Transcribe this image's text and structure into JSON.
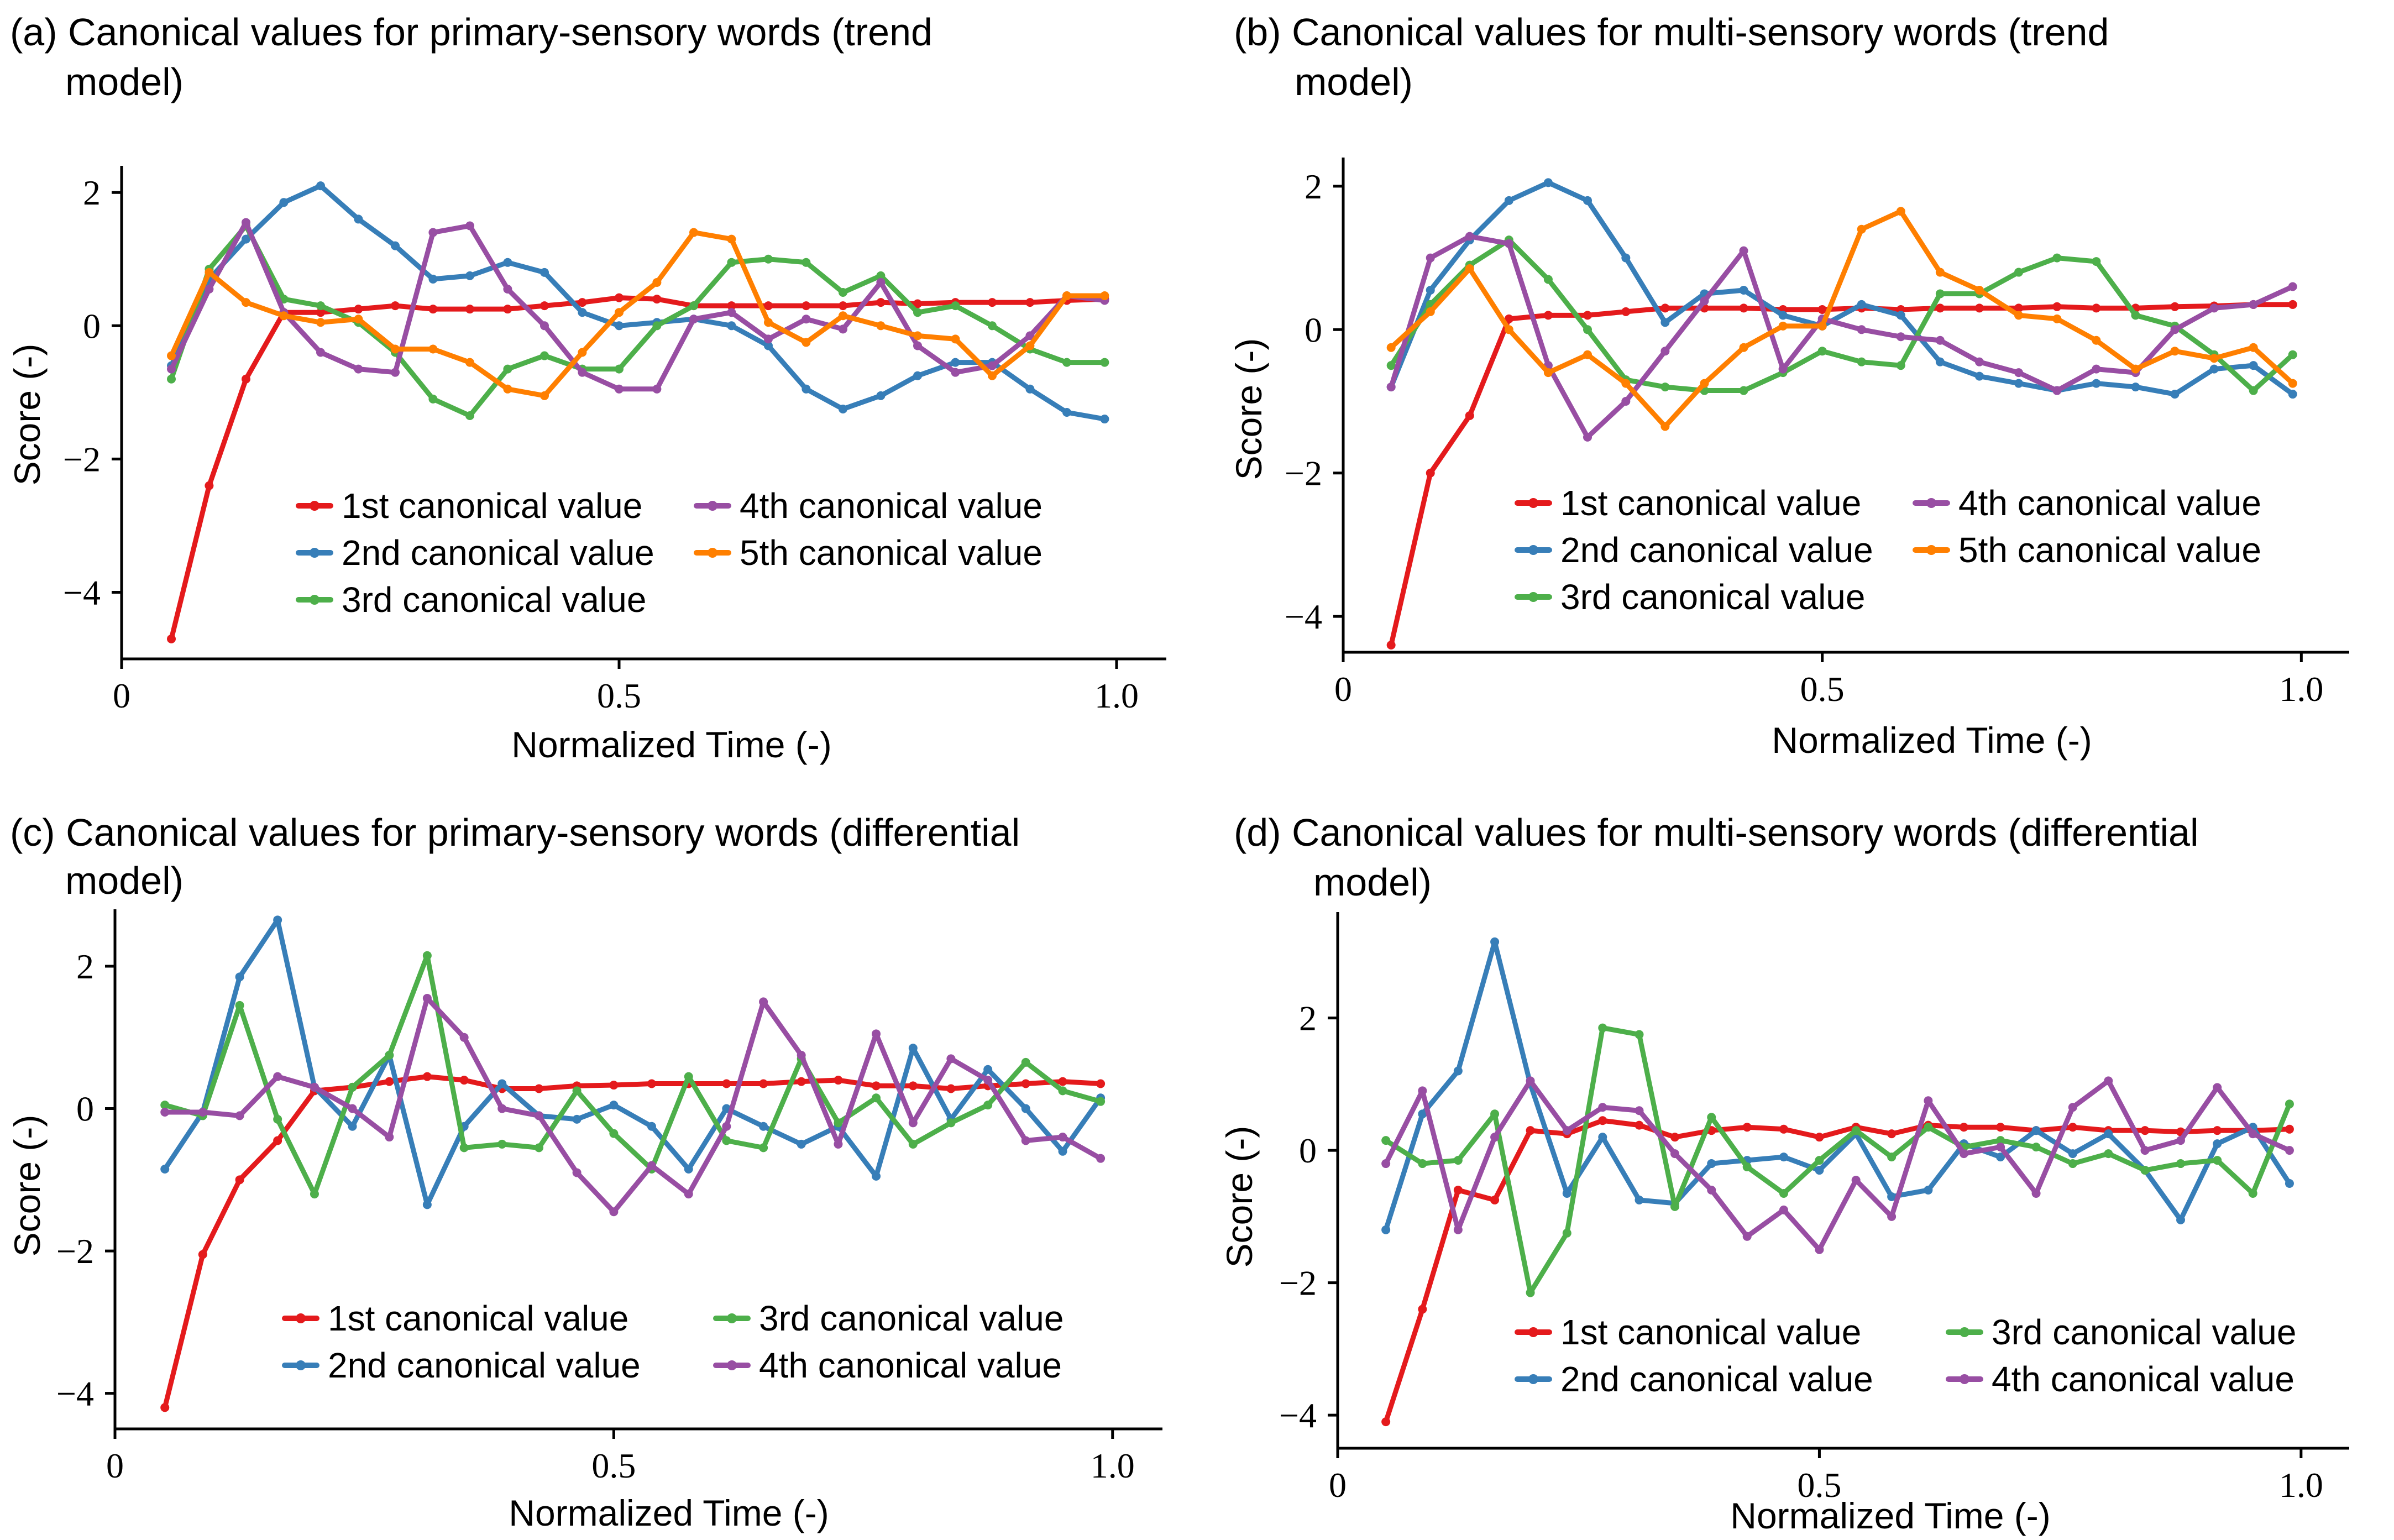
{
  "chart_data": [
    {
      "id": "a",
      "type": "line",
      "title_line1": "(a) Canonical values for primary-sensory words (trend",
      "title_line2": "model)",
      "xlabel": "Normalized Time (-)",
      "ylabel": "Score (-)",
      "xlim": [
        0,
        1.05
      ],
      "ylim": [
        -5,
        2.4
      ],
      "xticks": [
        {
          "v": 0,
          "label": "0"
        },
        {
          "v": 0.5,
          "label": "0.5"
        },
        {
          "v": 1.0,
          "label": "1.0"
        }
      ],
      "yticks": [
        {
          "v": -4,
          "label": "−4"
        },
        {
          "v": -2,
          "label": "−2"
        },
        {
          "v": 0,
          "label": "0"
        },
        {
          "v": 2,
          "label": "2"
        }
      ],
      "legend_columns": 2,
      "x": [
        0.05,
        0.088,
        0.125,
        0.163,
        0.2,
        0.238,
        0.275,
        0.313,
        0.35,
        0.388,
        0.425,
        0.463,
        0.5,
        0.538,
        0.575,
        0.613,
        0.65,
        0.688,
        0.725,
        0.763,
        0.8,
        0.838,
        0.875,
        0.913,
        0.95,
        0.988
      ],
      "series": [
        {
          "name": "1st canonical value",
          "color": "#e41a1c",
          "values": [
            -4.7,
            -2.4,
            -0.8,
            0.2,
            0.2,
            0.25,
            0.3,
            0.25,
            0.25,
            0.25,
            0.3,
            0.35,
            0.42,
            0.4,
            0.3,
            0.3,
            0.3,
            0.3,
            0.3,
            0.35,
            0.33,
            0.35,
            0.35,
            0.35,
            0.38,
            0.4
          ]
        },
        {
          "name": "2nd canonical value",
          "color": "#377eb8",
          "values": [
            -0.6,
            0.7,
            1.3,
            1.85,
            2.1,
            1.6,
            1.2,
            0.7,
            0.75,
            0.95,
            0.8,
            0.2,
            0.0,
            0.05,
            0.1,
            0.0,
            -0.3,
            -0.95,
            -1.25,
            -1.05,
            -0.75,
            -0.55,
            -0.55,
            -0.95,
            -1.3,
            -1.4
          ]
        },
        {
          "name": "3rd canonical value",
          "color": "#4daf4a",
          "values": [
            -0.8,
            0.85,
            1.5,
            0.4,
            0.3,
            0.05,
            -0.4,
            -1.1,
            -1.35,
            -0.65,
            -0.45,
            -0.65,
            -0.65,
            0.0,
            0.3,
            0.95,
            1.0,
            0.95,
            0.5,
            0.75,
            0.2,
            0.3,
            0.0,
            -0.35,
            -0.55,
            -0.55
          ]
        },
        {
          "name": "4th canonical value",
          "color": "#984ea3",
          "values": [
            -0.65,
            0.55,
            1.55,
            0.2,
            -0.4,
            -0.65,
            -0.7,
            1.4,
            1.5,
            0.55,
            0.0,
            -0.7,
            -0.95,
            -0.95,
            0.1,
            0.2,
            -0.2,
            0.1,
            -0.05,
            0.65,
            -0.3,
            -0.7,
            -0.6,
            -0.15,
            0.45,
            0.38
          ]
        },
        {
          "name": "5th canonical value",
          "color": "#ff7f00",
          "values": [
            -0.45,
            0.8,
            0.35,
            0.15,
            0.05,
            0.1,
            -0.35,
            -0.35,
            -0.55,
            -0.95,
            -1.05,
            -0.4,
            0.2,
            0.65,
            1.4,
            1.3,
            0.05,
            -0.25,
            0.15,
            0.0,
            -0.15,
            -0.2,
            -0.75,
            -0.3,
            0.45,
            0.45
          ]
        }
      ]
    },
    {
      "id": "b",
      "type": "line",
      "title_line1": "(b) Canonical values for multi-sensory words (trend",
      "title_line2": "model)",
      "xlabel": "Normalized Time (-)",
      "ylabel": "Score (-)",
      "xlim": [
        0,
        1.05
      ],
      "ylim": [
        -4.5,
        2.4
      ],
      "xticks": [
        {
          "v": 0,
          "label": "0"
        },
        {
          "v": 0.5,
          "label": "0.5"
        },
        {
          "v": 1.0,
          "label": "1.0"
        }
      ],
      "yticks": [
        {
          "v": -4,
          "label": "−4"
        },
        {
          "v": -2,
          "label": "−2"
        },
        {
          "v": 0,
          "label": "0"
        },
        {
          "v": 2,
          "label": "2"
        }
      ],
      "legend_columns": 2,
      "x": [
        0.05,
        0.091,
        0.132,
        0.173,
        0.214,
        0.255,
        0.295,
        0.336,
        0.377,
        0.418,
        0.459,
        0.5,
        0.541,
        0.582,
        0.623,
        0.664,
        0.705,
        0.745,
        0.786,
        0.827,
        0.868,
        0.909,
        0.95,
        0.991
      ],
      "series": [
        {
          "name": "1st canonical value",
          "color": "#e41a1c",
          "values": [
            -4.4,
            -2.0,
            -1.2,
            0.15,
            0.2,
            0.2,
            0.25,
            0.3,
            0.3,
            0.3,
            0.28,
            0.28,
            0.3,
            0.28,
            0.3,
            0.3,
            0.3,
            0.32,
            0.3,
            0.3,
            0.32,
            0.33,
            0.35,
            0.35
          ]
        },
        {
          "name": "2nd canonical value",
          "color": "#377eb8",
          "values": [
            -0.8,
            0.55,
            1.25,
            1.8,
            2.05,
            1.8,
            1.0,
            0.1,
            0.5,
            0.55,
            0.2,
            0.05,
            0.35,
            0.2,
            -0.45,
            -0.65,
            -0.75,
            -0.85,
            -0.75,
            -0.8,
            -0.9,
            -0.55,
            -0.5,
            -0.9
          ]
        },
        {
          "name": "3rd canonical value",
          "color": "#4daf4a",
          "values": [
            -0.5,
            0.35,
            0.9,
            1.25,
            0.7,
            0.0,
            -0.7,
            -0.8,
            -0.85,
            -0.85,
            -0.6,
            -0.3,
            -0.45,
            -0.5,
            0.5,
            0.5,
            0.8,
            1.0,
            0.95,
            0.2,
            0.05,
            -0.35,
            -0.85,
            -0.35
          ]
        },
        {
          "name": "4th canonical value",
          "color": "#984ea3",
          "values": [
            -0.8,
            1.0,
            1.3,
            1.2,
            -0.5,
            -1.5,
            -1.0,
            -0.3,
            0.4,
            1.1,
            -0.55,
            0.15,
            0.0,
            -0.1,
            -0.15,
            -0.45,
            -0.6,
            -0.85,
            -0.55,
            -0.6,
            0.0,
            0.3,
            0.35,
            0.6
          ]
        },
        {
          "name": "5th canonical value",
          "color": "#ff7f00",
          "values": [
            -0.25,
            0.25,
            0.85,
            0.0,
            -0.6,
            -0.35,
            -0.75,
            -1.35,
            -0.75,
            -0.25,
            0.05,
            0.05,
            1.4,
            1.65,
            0.8,
            0.55,
            0.2,
            0.15,
            -0.15,
            -0.55,
            -0.3,
            -0.4,
            -0.25,
            -0.75
          ]
        }
      ]
    },
    {
      "id": "c",
      "type": "line",
      "title_line1": "(c) Canonical values for primary-sensory words (differential",
      "title_line2": "model)",
      "xlabel": "Normalized Time (-)",
      "ylabel": "Score (-)",
      "xlim": [
        0,
        1.05
      ],
      "ylim": [
        -4.5,
        2.8
      ],
      "xticks": [
        {
          "v": 0,
          "label": "0"
        },
        {
          "v": 0.5,
          "label": "0.5"
        },
        {
          "v": 1.0,
          "label": "1.0"
        }
      ],
      "yticks": [
        {
          "v": -4,
          "label": "−4"
        },
        {
          "v": -2,
          "label": "−2"
        },
        {
          "v": 0,
          "label": "0"
        },
        {
          "v": 2,
          "label": "2"
        }
      ],
      "legend_columns": 2,
      "x": [
        0.05,
        0.088,
        0.125,
        0.163,
        0.2,
        0.238,
        0.275,
        0.313,
        0.35,
        0.388,
        0.425,
        0.463,
        0.5,
        0.538,
        0.575,
        0.613,
        0.65,
        0.688,
        0.725,
        0.763,
        0.8,
        0.838,
        0.875,
        0.913,
        0.95,
        0.988
      ],
      "series": [
        {
          "name": "1st canonical value",
          "color": "#e41a1c",
          "values": [
            -4.2,
            -2.05,
            -1.0,
            -0.45,
            0.25,
            0.3,
            0.38,
            0.45,
            0.4,
            0.28,
            0.28,
            0.32,
            0.33,
            0.35,
            0.35,
            0.35,
            0.35,
            0.38,
            0.4,
            0.32,
            0.32,
            0.28,
            0.32,
            0.35,
            0.38,
            0.35
          ]
        },
        {
          "name": "2nd canonical value",
          "color": "#377eb8",
          "values": [
            -0.85,
            -0.05,
            1.85,
            2.65,
            0.3,
            -0.25,
            0.75,
            -1.35,
            -0.25,
            0.35,
            -0.1,
            -0.15,
            0.05,
            -0.25,
            -0.85,
            0.0,
            -0.25,
            -0.5,
            -0.25,
            -0.95,
            0.85,
            -0.15,
            0.55,
            0.0,
            -0.6,
            0.15
          ]
        },
        {
          "name": "3rd canonical value",
          "color": "#4daf4a",
          "values": [
            0.05,
            -0.1,
            1.45,
            -0.15,
            -1.2,
            0.3,
            0.75,
            2.15,
            -0.55,
            -0.5,
            -0.55,
            0.25,
            -0.35,
            -0.85,
            0.45,
            -0.45,
            -0.55,
            0.7,
            -0.2,
            0.15,
            -0.5,
            -0.2,
            0.05,
            0.65,
            0.25,
            0.1
          ]
        },
        {
          "name": "4th canonical value",
          "color": "#984ea3",
          "values": [
            -0.05,
            -0.05,
            -0.1,
            0.45,
            0.3,
            0.0,
            -0.4,
            1.55,
            1.0,
            0.0,
            -0.1,
            -0.9,
            -1.45,
            -0.8,
            -1.2,
            -0.25,
            1.5,
            0.75,
            -0.5,
            1.05,
            -0.2,
            0.7,
            0.4,
            -0.45,
            -0.4,
            -0.7
          ]
        }
      ]
    },
    {
      "id": "d",
      "type": "line",
      "title_line1": "(d) Canonical values for multi-sensory words (differential",
      "title_line2": "model)",
      "xlabel": "Normalized Time (-)",
      "ylabel": "Score (-)",
      "xlim": [
        0,
        1.05
      ],
      "ylim": [
        -4.5,
        3.6
      ],
      "xticks": [
        {
          "v": 0,
          "label": "0"
        },
        {
          "v": 0.5,
          "label": "0.5"
        },
        {
          "v": 1.0,
          "label": "1.0"
        }
      ],
      "yticks": [
        {
          "v": -4,
          "label": "−4"
        },
        {
          "v": -2,
          "label": "−2"
        },
        {
          "v": 0,
          "label": "0"
        },
        {
          "v": 2,
          "label": "2"
        }
      ],
      "legend_columns": 2,
      "x": [
        0.05,
        0.088,
        0.125,
        0.163,
        0.2,
        0.238,
        0.275,
        0.313,
        0.35,
        0.388,
        0.425,
        0.463,
        0.5,
        0.538,
        0.575,
        0.613,
        0.65,
        0.688,
        0.725,
        0.763,
        0.8,
        0.838,
        0.875,
        0.913,
        0.95,
        0.988
      ],
      "series": [
        {
          "name": "1st canonical value",
          "color": "#e41a1c",
          "values": [
            -4.1,
            -2.4,
            -0.6,
            -0.75,
            0.3,
            0.25,
            0.45,
            0.38,
            0.2,
            0.3,
            0.35,
            0.32,
            0.2,
            0.35,
            0.25,
            0.38,
            0.35,
            0.35,
            0.3,
            0.35,
            0.3,
            0.3,
            0.28,
            0.3,
            0.3,
            0.32
          ]
        },
        {
          "name": "2nd canonical value",
          "color": "#377eb8",
          "values": [
            -1.2,
            0.55,
            1.2,
            3.15,
            1.0,
            -0.65,
            0.2,
            -0.75,
            -0.8,
            -0.2,
            -0.15,
            -0.1,
            -0.3,
            0.25,
            -0.7,
            -0.6,
            0.1,
            -0.1,
            0.3,
            -0.05,
            0.25,
            -0.3,
            -1.05,
            0.1,
            0.35,
            -0.5
          ]
        },
        {
          "name": "3rd canonical value",
          "color": "#4daf4a",
          "values": [
            0.15,
            -0.2,
            -0.15,
            0.55,
            -2.15,
            -1.25,
            1.85,
            1.75,
            -0.85,
            0.5,
            -0.25,
            -0.65,
            -0.15,
            0.3,
            -0.1,
            0.35,
            0.05,
            0.15,
            0.05,
            -0.2,
            -0.05,
            -0.3,
            -0.2,
            -0.15,
            -0.65,
            0.7
          ]
        },
        {
          "name": "4th canonical value",
          "color": "#984ea3",
          "values": [
            -0.2,
            0.9,
            -1.2,
            0.2,
            1.05,
            0.3,
            0.65,
            0.6,
            -0.05,
            -0.6,
            -1.3,
            -0.9,
            -1.5,
            -0.45,
            -1.0,
            0.75,
            -0.05,
            0.05,
            -0.65,
            0.65,
            1.05,
            0.0,
            0.15,
            0.95,
            0.25,
            0.0
          ]
        }
      ]
    }
  ]
}
